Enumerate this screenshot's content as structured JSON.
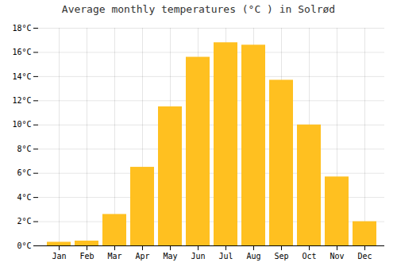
{
  "chart_data": {
    "type": "bar",
    "title": "Average monthly temperatures (°C ) in Solrød",
    "categories": [
      "Jan",
      "Feb",
      "Mar",
      "Apr",
      "May",
      "Jun",
      "Jul",
      "Aug",
      "Sep",
      "Oct",
      "Nov",
      "Dec"
    ],
    "values": [
      0.3,
      0.4,
      2.6,
      6.5,
      11.5,
      15.6,
      16.8,
      16.6,
      13.7,
      10.0,
      5.7,
      2.0
    ],
    "color": "#FFC020",
    "ylim": [
      0,
      18
    ],
    "yticks": [
      {
        "value": 0,
        "label": "0°C"
      },
      {
        "value": 2,
        "label": "2°C"
      },
      {
        "value": 4,
        "label": "4°C"
      },
      {
        "value": 6,
        "label": "6°C"
      },
      {
        "value": 8,
        "label": "8°C"
      },
      {
        "value": 10,
        "label": "10°C"
      },
      {
        "value": 12,
        "label": "12°C"
      },
      {
        "value": 14,
        "label": "14°C"
      },
      {
        "value": 16,
        "label": "16°C"
      },
      {
        "value": 18,
        "label": "18°C"
      }
    ],
    "grid": true
  }
}
